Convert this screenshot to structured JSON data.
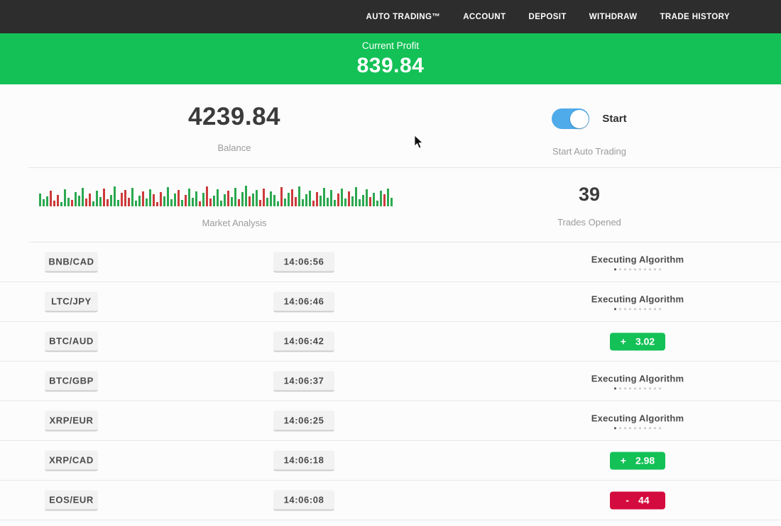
{
  "nav": {
    "items": [
      "AUTO TRADING™",
      "ACCOUNT",
      "DEPOSIT",
      "WITHDRAW",
      "TRADE HISTORY"
    ]
  },
  "profit_banner": {
    "label": "Current Profit",
    "value": "839.84"
  },
  "stats": {
    "balance": {
      "value": "4239.84",
      "label": "Balance"
    },
    "auto_trading": {
      "toggle_on": true,
      "toggle_label": "Start",
      "caption": "Start Auto Trading"
    },
    "market_analysis": {
      "label": "Market Analysis"
    },
    "trades_opened": {
      "value": "39",
      "label": "Trades Opened"
    }
  },
  "colors": {
    "navbar_bg": "#2d2d2d",
    "accent_green": "#13c156",
    "accent_red": "#d40b3e",
    "toggle_blue": "#4fabe9",
    "chart_green": "#2ba84f",
    "chart_red": "#cc3a3a"
  },
  "trades": [
    {
      "pair": "BNB/CAD",
      "time": "14:06:56",
      "status": "executing",
      "status_label": "Executing Algorithm"
    },
    {
      "pair": "LTC/JPY",
      "time": "14:06:46",
      "status": "executing",
      "status_label": "Executing Algorithm"
    },
    {
      "pair": "BTC/AUD",
      "time": "14:06:42",
      "status": "profit",
      "sign": "+",
      "value": "3.02"
    },
    {
      "pair": "BTC/GBP",
      "time": "14:06:37",
      "status": "executing",
      "status_label": "Executing Algorithm"
    },
    {
      "pair": "XRP/EUR",
      "time": "14:06:25",
      "status": "executing",
      "status_label": "Executing Algorithm"
    },
    {
      "pair": "XRP/CAD",
      "time": "14:06:18",
      "status": "profit",
      "sign": "+",
      "value": "2.98"
    },
    {
      "pair": "EOS/EUR",
      "time": "14:06:08",
      "status": "loss",
      "sign": "-",
      "value": "44"
    }
  ],
  "chart_data": {
    "type": "bar",
    "title": "Market Analysis",
    "note": "decorative candlestick-style market activity strip; bars as [height_px, color_key]",
    "colors": {
      "g": "#2ba84f",
      "r": "#cc3a3a"
    },
    "bars": [
      [
        18,
        "g"
      ],
      [
        10,
        "g"
      ],
      [
        14,
        "g"
      ],
      [
        22,
        "r"
      ],
      [
        8,
        "r"
      ],
      [
        16,
        "r"
      ],
      [
        6,
        "g"
      ],
      [
        24,
        "g"
      ],
      [
        12,
        "g"
      ],
      [
        9,
        "r"
      ],
      [
        20,
        "g"
      ],
      [
        15,
        "g"
      ],
      [
        26,
        "g"
      ],
      [
        11,
        "r"
      ],
      [
        18,
        "r"
      ],
      [
        7,
        "g"
      ],
      [
        22,
        "g"
      ],
      [
        13,
        "g"
      ],
      [
        25,
        "r"
      ],
      [
        10,
        "r"
      ],
      [
        16,
        "g"
      ],
      [
        28,
        "g"
      ],
      [
        9,
        "g"
      ],
      [
        19,
        "r"
      ],
      [
        23,
        "r"
      ],
      [
        12,
        "r"
      ],
      [
        26,
        "g"
      ],
      [
        8,
        "g"
      ],
      [
        15,
        "g"
      ],
      [
        21,
        "r"
      ],
      [
        11,
        "g"
      ],
      [
        24,
        "g"
      ],
      [
        17,
        "r"
      ],
      [
        6,
        "r"
      ],
      [
        20,
        "r"
      ],
      [
        14,
        "g"
      ],
      [
        27,
        "g"
      ],
      [
        10,
        "g"
      ],
      [
        18,
        "g"
      ],
      [
        23,
        "r"
      ],
      [
        9,
        "g"
      ],
      [
        16,
        "r"
      ],
      [
        25,
        "g"
      ],
      [
        12,
        "g"
      ],
      [
        21,
        "g"
      ],
      [
        7,
        "r"
      ],
      [
        19,
        "g"
      ],
      [
        28,
        "r"
      ],
      [
        11,
        "r"
      ],
      [
        15,
        "g"
      ],
      [
        24,
        "g"
      ],
      [
        8,
        "g"
      ],
      [
        17,
        "g"
      ],
      [
        22,
        "r"
      ],
      [
        13,
        "g"
      ],
      [
        26,
        "g"
      ],
      [
        10,
        "r"
      ],
      [
        20,
        "g"
      ],
      [
        29,
        "g"
      ],
      [
        14,
        "r"
      ],
      [
        18,
        "g"
      ],
      [
        23,
        "g"
      ],
      [
        9,
        "r"
      ],
      [
        25,
        "r"
      ],
      [
        12,
        "g"
      ],
      [
        21,
        "g"
      ],
      [
        16,
        "g"
      ],
      [
        7,
        "g"
      ],
      [
        27,
        "r"
      ],
      [
        11,
        "g"
      ],
      [
        19,
        "g"
      ],
      [
        24,
        "r"
      ],
      [
        13,
        "r"
      ],
      [
        28,
        "g"
      ],
      [
        10,
        "g"
      ],
      [
        17,
        "g"
      ],
      [
        22,
        "g"
      ],
      [
        8,
        "r"
      ],
      [
        20,
        "r"
      ],
      [
        15,
        "g"
      ],
      [
        26,
        "g"
      ],
      [
        12,
        "g"
      ],
      [
        23,
        "g"
      ],
      [
        9,
        "g"
      ],
      [
        18,
        "r"
      ],
      [
        25,
        "g"
      ],
      [
        11,
        "g"
      ],
      [
        21,
        "r"
      ],
      [
        14,
        "g"
      ],
      [
        27,
        "g"
      ],
      [
        10,
        "g"
      ],
      [
        16,
        "g"
      ],
      [
        24,
        "g"
      ],
      [
        13,
        "r"
      ],
      [
        19,
        "g"
      ],
      [
        8,
        "g"
      ],
      [
        22,
        "g"
      ],
      [
        17,
        "r"
      ],
      [
        25,
        "g"
      ],
      [
        12,
        "g"
      ]
    ]
  }
}
